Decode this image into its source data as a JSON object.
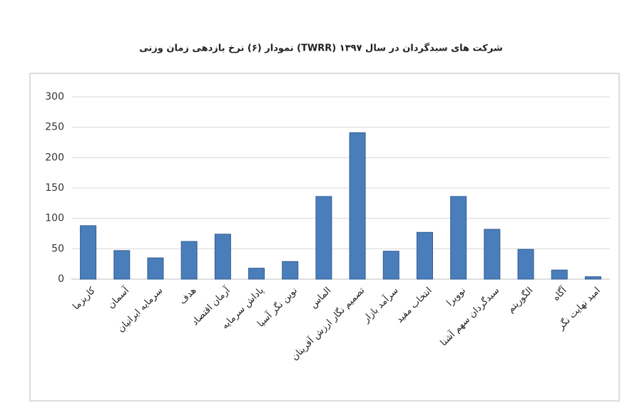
{
  "chart_data": {
    "type": "bar",
    "title": "نمودار (۶) نرخ بازدهی زمان وزنی (TWRR) شرکت های سبدگردان در سال ۱۳۹۷",
    "categories": [
      "کاریزما",
      "آسمان",
      "سرمایه ایرانیان",
      "هدف",
      "آرمان اقتصاد",
      "پاداش سرمایه",
      "نوین نگر آسیا",
      "الماس",
      "تصمیم نگار ارزش آفرینان",
      "سرآمد بازار",
      "انتخاب مفید",
      "نوویرا",
      "سبدگردان سهم آشنا",
      "الگوریتم",
      "آگاه",
      "امید نهایت نگر"
    ],
    "values": [
      88,
      47,
      35,
      62,
      74,
      18,
      29,
      136,
      241,
      46,
      77,
      136,
      82,
      49,
      15,
      4
    ],
    "color": "#4a7ebb",
    "ylim": [
      0,
      300
    ],
    "yticks": [
      0,
      50,
      100,
      150,
      200,
      250,
      300
    ],
    "grid": true
  }
}
